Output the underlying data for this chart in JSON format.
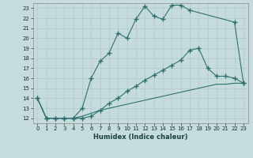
{
  "xlabel": "Humidex (Indice chaleur)",
  "xlim": [
    -0.5,
    23.5
  ],
  "ylim": [
    11.5,
    23.5
  ],
  "xticks": [
    0,
    1,
    2,
    3,
    4,
    5,
    6,
    7,
    8,
    9,
    10,
    11,
    12,
    13,
    14,
    15,
    16,
    17,
    18,
    19,
    20,
    21,
    22,
    23
  ],
  "yticks": [
    12,
    13,
    14,
    15,
    16,
    17,
    18,
    19,
    20,
    21,
    22,
    23
  ],
  "bg_color": "#c6dcdc",
  "grid_color": "#b0c8c8",
  "line_color": "#2d7070",
  "line1_x": [
    0,
    1,
    2,
    3,
    4,
    5,
    6,
    7,
    8,
    9,
    10,
    11,
    12,
    13,
    14,
    15,
    16,
    17,
    22,
    23
  ],
  "line1_y": [
    14,
    12,
    12,
    12,
    12,
    13,
    16,
    17.7,
    18.5,
    20.5,
    20.0,
    21.9,
    23.2,
    22.2,
    21.9,
    23.3,
    23.3,
    22.8,
    21.6,
    15.5
  ],
  "line2_x": [
    0,
    1,
    2,
    3,
    4,
    5,
    6,
    7,
    8,
    9,
    10,
    11,
    12,
    13,
    14,
    15,
    16,
    17,
    18,
    19,
    20,
    21,
    22,
    23
  ],
  "line2_y": [
    14,
    12,
    12,
    12,
    12,
    12,
    12.2,
    12.8,
    13.5,
    14.0,
    14.7,
    15.2,
    15.8,
    16.3,
    16.8,
    17.3,
    17.8,
    18.8,
    19.0,
    17.0,
    16.2,
    16.2,
    16.0,
    15.5
  ],
  "line3_x": [
    0,
    1,
    2,
    3,
    4,
    5,
    6,
    7,
    8,
    9,
    10,
    11,
    12,
    13,
    14,
    15,
    16,
    17,
    18,
    19,
    20,
    21,
    22,
    23
  ],
  "line3_y": [
    14,
    12,
    12,
    12,
    12,
    12.2,
    12.5,
    12.8,
    13.0,
    13.2,
    13.4,
    13.6,
    13.8,
    14.0,
    14.2,
    14.4,
    14.6,
    14.8,
    15.0,
    15.2,
    15.4,
    15.4,
    15.5,
    15.5
  ]
}
